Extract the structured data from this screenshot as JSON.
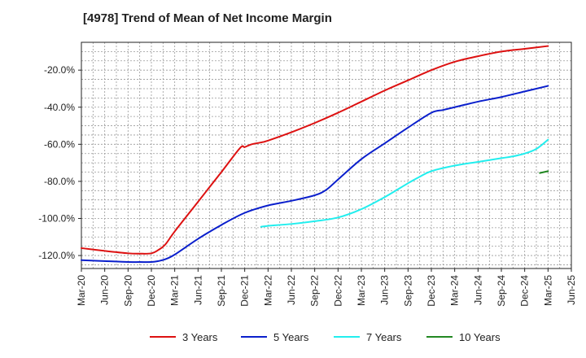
{
  "chart_data": {
    "type": "line",
    "title": "[4978]  Trend of Mean of Net Income Margin",
    "xlabel": "",
    "ylabel": "",
    "x_ticks": [
      "Mar-20",
      "Jun-20",
      "Sep-20",
      "Dec-20",
      "Mar-21",
      "Jun-21",
      "Sep-21",
      "Dec-21",
      "Mar-22",
      "Jun-22",
      "Sep-22",
      "Dec-22",
      "Mar-23",
      "Jun-23",
      "Sep-23",
      "Dec-23",
      "Mar-24",
      "Jun-24",
      "Sep-24",
      "Dec-24",
      "Mar-25",
      "Jun-25"
    ],
    "y_ticks": [
      -120,
      -100,
      -80,
      -60,
      -40,
      -20
    ],
    "y_tick_labels": [
      "-120.0%",
      "-100.0%",
      "-80.0%",
      "-60.0%",
      "-40.0%",
      "-20.0%"
    ],
    "ylim": [
      -127,
      -5
    ],
    "grid": true,
    "legend_position": "bottom",
    "colors": {
      "3 Years": "#dd1111",
      "5 Years": "#0a1fcc",
      "7 Years": "#22eeee",
      "10 Years": "#228822",
      "grid": "#999999",
      "axis": "#222222"
    },
    "series": [
      {
        "name": "3 Years",
        "color": "#dd1111",
        "x": [
          0,
          1,
          2,
          2.5,
          3,
          3.3,
          3.6,
          4,
          5,
          6,
          6.8,
          7,
          7.3,
          7.7,
          8,
          9,
          10,
          11,
          12,
          13,
          14,
          15,
          16,
          17,
          18,
          19,
          20
        ],
        "y": [
          -116,
          -117.5,
          -118.8,
          -119,
          -118.8,
          -117,
          -114,
          -107,
          -91,
          -75,
          -62,
          -61.5,
          -60,
          -59,
          -58,
          -53.5,
          -48.5,
          -43,
          -37,
          -31,
          -25.5,
          -20,
          -15.5,
          -12.5,
          -10,
          -8.5,
          -7
        ]
      },
      {
        "name": "5 Years",
        "color": "#0a1fcc",
        "x": [
          0,
          1,
          2,
          2.5,
          3,
          3.3,
          3.6,
          4,
          5,
          6,
          7,
          8,
          9,
          10,
          10.5,
          11,
          12,
          13,
          14,
          15,
          15.5,
          16,
          17,
          18,
          19,
          20
        ],
        "y": [
          -122.5,
          -123,
          -123.5,
          -123.5,
          -123.5,
          -123,
          -122,
          -119.5,
          -111,
          -103.5,
          -97,
          -93,
          -90.5,
          -87.5,
          -84.5,
          -79,
          -68,
          -59.5,
          -51,
          -43,
          -41.5,
          -40,
          -37,
          -34.5,
          -31.5,
          -28.5
        ]
      },
      {
        "name": "7 Years",
        "color": "#22eeee",
        "x": [
          7.7,
          8,
          9,
          10,
          11,
          12,
          13,
          14,
          14.5,
          15,
          16,
          17,
          18,
          18.5,
          19,
          19.5,
          20
        ],
        "y": [
          -104.5,
          -104,
          -103,
          -101.5,
          -99.5,
          -95,
          -88.5,
          -81,
          -77.5,
          -74.5,
          -71.5,
          -69.5,
          -67.5,
          -66.5,
          -65,
          -62.5,
          -57.5
        ]
      },
      {
        "name": "10 Years",
        "color": "#228822",
        "x": [
          19.65,
          20
        ],
        "y": [
          -75.5,
          -74.5
        ]
      }
    ]
  }
}
